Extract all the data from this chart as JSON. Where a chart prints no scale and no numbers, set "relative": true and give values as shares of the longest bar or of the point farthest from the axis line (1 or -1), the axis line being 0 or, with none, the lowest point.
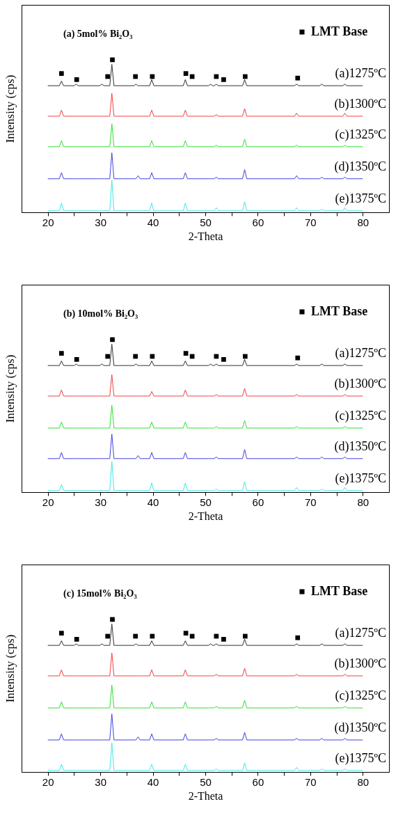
{
  "chart_data": [
    {
      "type": "line",
      "title": "(a) 5mol% Bi₂O₃",
      "xlabel": "2-Theta",
      "ylabel": "Intensity (cps)",
      "relative": true,
      "tick_labels": "x",
      "legend": "top right",
      "line_style": "solid",
      "xlim": [
        15,
        85
      ],
      "xticks": [
        20,
        {
          "value": 25,
          "label": null
        },
        30,
        {
          "value": 35,
          "label": null
        },
        40,
        {
          "value": 45,
          "label": null
        },
        50,
        {
          "value": 55,
          "label": null
        },
        60,
        {
          "value": 65,
          "label": null
        },
        70,
        {
          "value": 75,
          "label": null
        },
        80
      ],
      "x": [
        20,
        22.2,
        22.6,
        23.0,
        25.0,
        25.4,
        25.8,
        29.9,
        30.3,
        30.7,
        31.8,
        32.2,
        32.6,
        36.4,
        36.8,
        37.2,
        37.6,
        39.4,
        39.8,
        40.2,
        45.8,
        46.2,
        46.6,
        50.6,
        51.0,
        51.4,
        51.7,
        52.1,
        52.5,
        57.1,
        57.5,
        57.9,
        67.0,
        67.4,
        67.8,
        71.8,
        72.2,
        72.6,
        76.2,
        76.6,
        77.0,
        80
      ],
      "series": [
        {
          "name": "(a)1275ºC",
          "color": "#303030",
          "values": [
            0.83,
            0.83,
            0.86,
            0.83,
            0.83,
            0.84,
            0.83,
            0.83,
            0.84,
            0.83,
            0.83,
            0.97,
            0.83,
            0.83,
            0.84,
            0.83,
            0.83,
            0.83,
            0.87,
            0.83,
            0.83,
            0.87,
            0.83,
            0.83,
            0.84,
            0.83,
            0.83,
            0.84,
            0.83,
            0.83,
            0.87,
            0.83,
            0.83,
            0.84,
            0.83,
            0.83,
            0.84,
            0.83,
            0.83,
            0.84,
            0.83,
            0.83
          ]
        },
        {
          "name": "(b)1300ºC",
          "color": "#f04040",
          "values": [
            0.63,
            0.63,
            0.67,
            0.63,
            0.63,
            0.63,
            0.63,
            0.63,
            0.63,
            0.63,
            0.63,
            0.78,
            0.63,
            0.63,
            0.63,
            0.63,
            0.63,
            0.63,
            0.67,
            0.63,
            0.63,
            0.67,
            0.63,
            0.63,
            0.63,
            0.63,
            0.63,
            0.64,
            0.63,
            0.63,
            0.68,
            0.63,
            0.63,
            0.65,
            0.63,
            0.63,
            0.63,
            0.63,
            0.63,
            0.65,
            0.63,
            0.63
          ]
        },
        {
          "name": "(c)1325ºC",
          "color": "#30e030",
          "values": [
            0.43,
            0.43,
            0.47,
            0.43,
            0.43,
            0.43,
            0.43,
            0.43,
            0.43,
            0.43,
            0.43,
            0.58,
            0.43,
            0.43,
            0.43,
            0.43,
            0.43,
            0.43,
            0.47,
            0.43,
            0.43,
            0.47,
            0.43,
            0.43,
            0.43,
            0.43,
            0.43,
            0.44,
            0.43,
            0.43,
            0.48,
            0.43,
            0.43,
            0.44,
            0.43,
            0.43,
            0.43,
            0.43,
            0.43,
            0.44,
            0.43,
            0.43
          ]
        },
        {
          "name": "(d)1350ºC",
          "color": "#4040e0",
          "values": [
            0.22,
            0.22,
            0.26,
            0.22,
            0.22,
            0.22,
            0.22,
            0.22,
            0.22,
            0.22,
            0.22,
            0.39,
            0.22,
            0.22,
            0.22,
            0.24,
            0.22,
            0.22,
            0.26,
            0.22,
            0.22,
            0.26,
            0.22,
            0.22,
            0.22,
            0.22,
            0.22,
            0.23,
            0.22,
            0.22,
            0.28,
            0.22,
            0.22,
            0.24,
            0.22,
            0.22,
            0.23,
            0.22,
            0.22,
            0.23,
            0.22,
            0.22
          ]
        },
        {
          "name": "(e)1375ºC",
          "color": "#40e8e8",
          "values": [
            0.01,
            0.01,
            0.06,
            0.01,
            0.01,
            0.01,
            0.01,
            0.01,
            0.01,
            0.01,
            0.01,
            0.21,
            0.01,
            0.01,
            0.01,
            0.01,
            0.01,
            0.01,
            0.06,
            0.01,
            0.01,
            0.06,
            0.01,
            0.01,
            0.01,
            0.01,
            0.01,
            0.03,
            0.01,
            0.01,
            0.07,
            0.01,
            0.01,
            0.03,
            0.01,
            0.01,
            0.02,
            0.01,
            0.01,
            0.03,
            0.01,
            0.01
          ]
        },
        {
          "name": "LMT Base",
          "type": "scatter",
          "marker": "square",
          "color": "#000000",
          "x": [
            22.6,
            25.5,
            31.4,
            32.3,
            36.7,
            39.9,
            46.3,
            47.5,
            52.1,
            53.5,
            57.6,
            67.6
          ],
          "values": [
            0.91,
            0.87,
            0.89,
            1.0,
            0.89,
            0.89,
            0.91,
            0.89,
            0.89,
            0.87,
            0.89,
            0.88
          ]
        }
      ]
    },
    {
      "type": "line",
      "title": "(b) 10mol% Bi₂O₃",
      "xlabel": "2-Theta",
      "ylabel": "Intensity (cps)",
      "relative": true,
      "tick_labels": "x",
      "legend": "top right",
      "line_style": "solid",
      "xlim": [
        15,
        85
      ],
      "xticks": [
        20,
        {
          "value": 25,
          "label": null
        },
        30,
        {
          "value": 35,
          "label": null
        },
        40,
        {
          "value": 45,
          "label": null
        },
        50,
        {
          "value": 55,
          "label": null
        },
        60,
        {
          "value": 65,
          "label": null
        },
        70,
        {
          "value": 75,
          "label": null
        },
        80
      ],
      "x": [
        20,
        22.2,
        22.6,
        23.0,
        25.0,
        25.4,
        25.8,
        29.9,
        30.3,
        30.7,
        31.8,
        32.2,
        32.6,
        36.4,
        36.8,
        37.2,
        37.6,
        39.4,
        39.8,
        40.2,
        45.8,
        46.2,
        46.6,
        50.6,
        51.0,
        51.4,
        51.7,
        52.1,
        52.5,
        57.1,
        57.5,
        57.9,
        67.0,
        67.4,
        67.8,
        71.8,
        72.2,
        72.6,
        76.2,
        76.6,
        77.0,
        80
      ],
      "series": [
        {
          "name": "(a)1275ºC",
          "color": "#303030",
          "values": [
            0.83,
            0.83,
            0.86,
            0.83,
            0.83,
            0.84,
            0.83,
            0.83,
            0.84,
            0.83,
            0.83,
            0.97,
            0.83,
            0.83,
            0.84,
            0.83,
            0.83,
            0.83,
            0.86,
            0.83,
            0.83,
            0.86,
            0.83,
            0.83,
            0.84,
            0.83,
            0.83,
            0.84,
            0.83,
            0.83,
            0.87,
            0.83,
            0.83,
            0.84,
            0.83,
            0.83,
            0.84,
            0.83,
            0.83,
            0.84,
            0.83,
            0.83
          ]
        },
        {
          "name": "(b)1300ºC",
          "color": "#f04040",
          "values": [
            0.63,
            0.63,
            0.67,
            0.63,
            0.63,
            0.63,
            0.63,
            0.63,
            0.63,
            0.63,
            0.63,
            0.77,
            0.63,
            0.63,
            0.63,
            0.63,
            0.63,
            0.63,
            0.66,
            0.63,
            0.63,
            0.67,
            0.63,
            0.63,
            0.63,
            0.63,
            0.63,
            0.64,
            0.63,
            0.63,
            0.68,
            0.63,
            0.63,
            0.64,
            0.63,
            0.63,
            0.63,
            0.63,
            0.63,
            0.64,
            0.63,
            0.63
          ]
        },
        {
          "name": "(c)1325ºC",
          "color": "#30e030",
          "values": [
            0.42,
            0.42,
            0.46,
            0.42,
            0.42,
            0.42,
            0.42,
            0.42,
            0.42,
            0.42,
            0.42,
            0.57,
            0.42,
            0.42,
            0.42,
            0.42,
            0.42,
            0.42,
            0.46,
            0.42,
            0.42,
            0.46,
            0.42,
            0.42,
            0.42,
            0.42,
            0.42,
            0.43,
            0.42,
            0.42,
            0.47,
            0.42,
            0.42,
            0.43,
            0.42,
            0.42,
            0.42,
            0.42,
            0.42,
            0.43,
            0.42,
            0.42
          ]
        },
        {
          "name": "(d)1350ºC",
          "color": "#4040e0",
          "values": [
            0.22,
            0.22,
            0.26,
            0.22,
            0.22,
            0.22,
            0.22,
            0.22,
            0.22,
            0.22,
            0.22,
            0.38,
            0.22,
            0.22,
            0.22,
            0.24,
            0.22,
            0.22,
            0.26,
            0.22,
            0.22,
            0.26,
            0.22,
            0.22,
            0.22,
            0.22,
            0.22,
            0.23,
            0.22,
            0.22,
            0.28,
            0.22,
            0.22,
            0.23,
            0.22,
            0.22,
            0.23,
            0.22,
            0.22,
            0.23,
            0.22,
            0.22
          ]
        },
        {
          "name": "(e)1375ºC",
          "color": "#40e8e8",
          "values": [
            0.01,
            0.01,
            0.05,
            0.01,
            0.01,
            0.01,
            0.01,
            0.01,
            0.01,
            0.01,
            0.01,
            0.2,
            0.01,
            0.01,
            0.01,
            0.01,
            0.01,
            0.01,
            0.06,
            0.01,
            0.01,
            0.06,
            0.01,
            0.01,
            0.01,
            0.01,
            0.01,
            0.02,
            0.01,
            0.01,
            0.07,
            0.01,
            0.01,
            0.03,
            0.01,
            0.01,
            0.02,
            0.01,
            0.01,
            0.03,
            0.01,
            0.01
          ]
        },
        {
          "name": "LMT Base",
          "type": "scatter",
          "marker": "square",
          "color": "#000000",
          "x": [
            22.6,
            25.5,
            31.4,
            32.3,
            36.7,
            39.9,
            46.3,
            47.5,
            52.1,
            53.5,
            57.6,
            67.6
          ],
          "values": [
            0.91,
            0.87,
            0.89,
            1.0,
            0.89,
            0.89,
            0.91,
            0.89,
            0.89,
            0.87,
            0.89,
            0.88
          ]
        }
      ]
    },
    {
      "type": "line",
      "title": "(c) 15mol% Bi₂O₃",
      "xlabel": "2-Theta",
      "ylabel": "Intensity (cps)",
      "relative": true,
      "tick_labels": "x",
      "legend": "top right",
      "line_style": "solid",
      "xlim": [
        15,
        85
      ],
      "xticks": [
        20,
        {
          "value": 25,
          "label": null
        },
        30,
        {
          "value": 35,
          "label": null
        },
        40,
        {
          "value": 45,
          "label": null
        },
        50,
        {
          "value": 55,
          "label": null
        },
        60,
        {
          "value": 65,
          "label": null
        },
        70,
        {
          "value": 75,
          "label": null
        },
        80
      ],
      "x": [
        20,
        22.2,
        22.6,
        23.0,
        25.0,
        25.4,
        25.8,
        29.9,
        30.3,
        30.7,
        31.8,
        32.2,
        32.6,
        36.4,
        36.8,
        37.2,
        37.6,
        39.4,
        39.8,
        40.2,
        45.8,
        46.2,
        46.6,
        50.6,
        51.0,
        51.4,
        51.7,
        52.1,
        52.5,
        57.1,
        57.5,
        57.9,
        67.0,
        67.4,
        67.8,
        71.8,
        72.2,
        72.6,
        76.2,
        76.6,
        77.0,
        80
      ],
      "series": [
        {
          "name": "(a)1275ºC",
          "color": "#303030",
          "values": [
            0.83,
            0.83,
            0.86,
            0.83,
            0.83,
            0.84,
            0.83,
            0.83,
            0.84,
            0.83,
            0.83,
            0.97,
            0.83,
            0.83,
            0.84,
            0.83,
            0.83,
            0.83,
            0.86,
            0.83,
            0.83,
            0.86,
            0.83,
            0.83,
            0.84,
            0.83,
            0.83,
            0.84,
            0.83,
            0.83,
            0.87,
            0.83,
            0.83,
            0.84,
            0.83,
            0.83,
            0.84,
            0.83,
            0.83,
            0.84,
            0.83,
            0.83
          ]
        },
        {
          "name": "(b)1300ºC",
          "color": "#f04040",
          "values": [
            0.63,
            0.63,
            0.67,
            0.63,
            0.63,
            0.63,
            0.63,
            0.63,
            0.63,
            0.63,
            0.63,
            0.78,
            0.63,
            0.63,
            0.63,
            0.63,
            0.63,
            0.63,
            0.67,
            0.63,
            0.63,
            0.67,
            0.63,
            0.63,
            0.63,
            0.63,
            0.63,
            0.64,
            0.63,
            0.63,
            0.68,
            0.63,
            0.63,
            0.64,
            0.63,
            0.63,
            0.63,
            0.63,
            0.63,
            0.64,
            0.63,
            0.63
          ]
        },
        {
          "name": "(c)1325ºC",
          "color": "#30e030",
          "values": [
            0.42,
            0.42,
            0.46,
            0.42,
            0.42,
            0.42,
            0.42,
            0.42,
            0.42,
            0.42,
            0.42,
            0.57,
            0.42,
            0.42,
            0.42,
            0.42,
            0.42,
            0.42,
            0.46,
            0.42,
            0.42,
            0.46,
            0.42,
            0.42,
            0.42,
            0.42,
            0.42,
            0.43,
            0.42,
            0.42,
            0.47,
            0.42,
            0.42,
            0.43,
            0.42,
            0.42,
            0.42,
            0.42,
            0.42,
            0.43,
            0.42,
            0.42
          ]
        },
        {
          "name": "(d)1350ºC",
          "color": "#4040e0",
          "values": [
            0.21,
            0.21,
            0.25,
            0.21,
            0.21,
            0.21,
            0.21,
            0.21,
            0.21,
            0.21,
            0.21,
            0.38,
            0.21,
            0.21,
            0.21,
            0.23,
            0.21,
            0.21,
            0.25,
            0.21,
            0.21,
            0.25,
            0.21,
            0.21,
            0.21,
            0.21,
            0.21,
            0.22,
            0.21,
            0.21,
            0.26,
            0.21,
            0.21,
            0.22,
            0.21,
            0.21,
            0.22,
            0.21,
            0.21,
            0.22,
            0.21,
            0.21
          ]
        },
        {
          "name": "(e)1375ºC",
          "color": "#40e8e8",
          "values": [
            0.01,
            0.01,
            0.05,
            0.01,
            0.01,
            0.01,
            0.01,
            0.01,
            0.01,
            0.01,
            0.01,
            0.19,
            0.01,
            0.01,
            0.01,
            0.01,
            0.01,
            0.01,
            0.05,
            0.01,
            0.01,
            0.05,
            0.01,
            0.01,
            0.01,
            0.01,
            0.01,
            0.02,
            0.01,
            0.01,
            0.06,
            0.01,
            0.01,
            0.03,
            0.01,
            0.01,
            0.02,
            0.01,
            0.01,
            0.02,
            0.01,
            0.01
          ]
        },
        {
          "name": "LMT Base",
          "type": "scatter",
          "marker": "square",
          "color": "#000000",
          "x": [
            22.6,
            25.5,
            31.4,
            32.3,
            36.7,
            39.9,
            46.3,
            47.5,
            52.1,
            53.5,
            57.6,
            67.6
          ],
          "values": [
            0.91,
            0.87,
            0.89,
            1.0,
            0.89,
            0.89,
            0.91,
            0.89,
            0.89,
            0.87,
            0.89,
            0.88
          ]
        }
      ]
    }
  ]
}
